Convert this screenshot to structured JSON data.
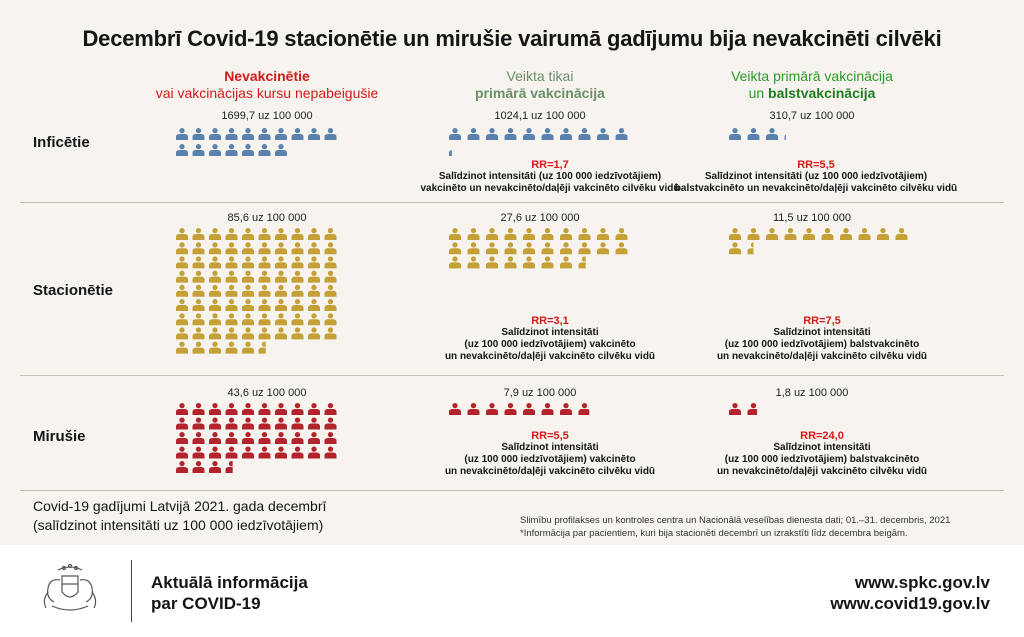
{
  "title": "Decembrī Covid-19 stacionētie un mirušie vairumā gadījumu bija nevakcinēti cilvēki",
  "columns": {
    "unvax": {
      "line1": "Nevakcinētie",
      "line2": "vai vakcinācijas kursu nepabeigušie"
    },
    "primary": {
      "line1": "Veikta tikai",
      "line2": "primārā vakcinācija"
    },
    "booster": {
      "line1": "Veikta primārā vakcinācija",
      "line2a": "un ",
      "line2b": "balstvakcinācija"
    }
  },
  "rows": {
    "infected": "Inficētie",
    "hospitalized": "Stacionētie",
    "deceased": "Mirušie"
  },
  "values": {
    "infected_unvax": "1699,7 uz 100 000",
    "infected_primary": "1024,1 uz 100 000",
    "infected_booster": "310,7 uz 100 000",
    "hosp_unvax": "85,6 uz 100 000",
    "hosp_primary": "27,6 uz 100 000",
    "hosp_booster": "11,5 uz 100 000",
    "dead_unvax": "43,6 uz 100 000",
    "dead_primary": "7,9 uz 100 000",
    "dead_booster": "1,8 uz 100 000"
  },
  "rr": {
    "infected_primary": {
      "value": "RR=1,7",
      "l1": "Salīdzinot intensitāti (uz 100 000 iedzīvotājiem)",
      "l2": "vakcinēto un nevakcinēto/daļēji vakcinēto cilvēku vidū"
    },
    "infected_booster": {
      "value": "RR=5,5",
      "l1": "Salīdzinot intensitāti (uz 100 000 iedzīvotājiem)",
      "l2": "balstvakcinēto un nevakcinēto/daļēji vakcinēto cilvēku vidū"
    },
    "hosp_primary": {
      "value": "RR=3,1",
      "l1": "Salīdzinot intensitāti",
      "l2": "(uz 100 000 iedzīvotājiem) vakcinēto",
      "l3": "un nevakcinēto/daļēji vakcinēto cilvēku vidū"
    },
    "hosp_booster": {
      "value": "RR=7,5",
      "l1": "Salīdzinot intensitāti",
      "l2": "(uz 100 000 iedzīvotājiem) balstvakcinēto",
      "l3": "un nevakcinēto/daļēji vakcinēto cilvēku vidū"
    },
    "dead_primary": {
      "value": "RR=5,5",
      "l1": "Salīdzinot intensitāti",
      "l2": "(uz 100 000 iedzīvotājiem) vakcinēto",
      "l3": "un nevakcinēto/daļēji vakcinēto cilvēku vidū"
    },
    "dead_booster": {
      "value": "RR=24,0",
      "l1": "Salīdzinot intensitāti",
      "l2": "(uz 100 000 iedzīvotājiem) balstvakcinēto",
      "l3": "un nevakcinēto/daļēji vakcinēto cilvēku vidū"
    }
  },
  "bottom_left": {
    "l1": "Covid-19 gadījumi Latvijā 2021. gada decembrī",
    "l2": "(salīdzinot intensitāti uz 100 000 iedzīvotājiem)"
  },
  "source": {
    "l1": "Slimību profilakses un kontroles centra un Nacionālā veselības dienesta dati; 01.–31. decembris, 2021",
    "l2": "*Informācija par pacientiem, kuri bija stacionēti decembrī un izrakstīti līdz decembra beigām."
  },
  "footer": {
    "l1": "Aktuālā informācija",
    "l2": "par COVID-19",
    "url1": "www.spkc.gov.lv",
    "url2": "www.covid19.gov.lv"
  },
  "colors": {
    "infected": "#5a80ad",
    "hospitalized": "#c4a037",
    "deceased": "#b3232c",
    "rr_red": "#d41a1a",
    "green": "#2a9a2a"
  },
  "chart_data": {
    "type": "table",
    "title": "Decembrī Covid-19 stacionētie un mirušie vairumā gadījumu bija nevakcinēti cilvēki",
    "categories": [
      "Nevakcinētie vai vakcinācijas kursu nepabeigušie",
      "Veikta tikai primārā vakcinācija",
      "Veikta primārā vakcinācija un balstvakcinācija"
    ],
    "unit": "uz 100 000",
    "series": [
      {
        "name": "Inficētie",
        "values": [
          1699.7,
          1024.1,
          310.7
        ],
        "rr": [
          null,
          1.7,
          5.5
        ]
      },
      {
        "name": "Stacionētie",
        "values": [
          85.6,
          27.6,
          11.5
        ],
        "rr": [
          null,
          3.1,
          7.5
        ]
      },
      {
        "name": "Mirušie",
        "values": [
          43.6,
          7.9,
          1.8
        ],
        "rr": [
          null,
          5.5,
          24.0
        ]
      }
    ]
  }
}
